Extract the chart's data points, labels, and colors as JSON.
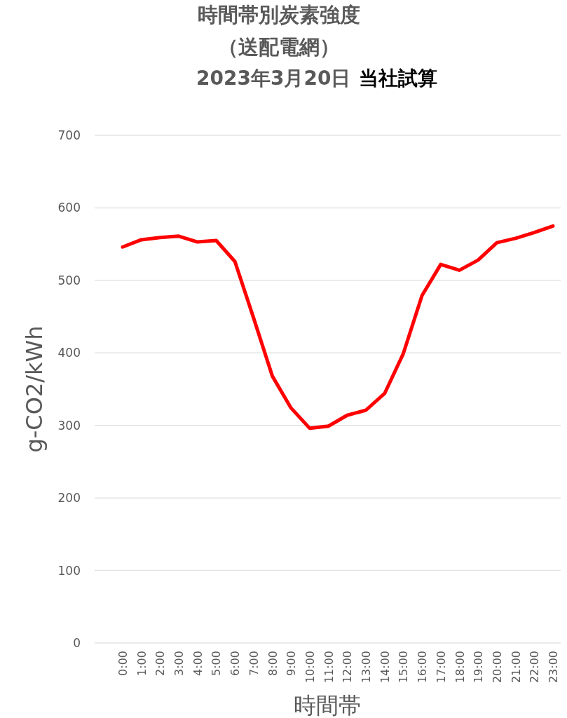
{
  "chart_data": {
    "type": "line",
    "title": "時間帯別炭素強度",
    "subtitle": "（送配電網）",
    "annotations": [
      "2023年3月20日",
      "当社試算"
    ],
    "xlabel": "時間帯",
    "ylabel": "g-CO2/kWh",
    "categories": [
      "0:00",
      "1:00",
      "2:00",
      "3:00",
      "4:00",
      "5:00",
      "6:00",
      "7:00",
      "8:00",
      "9:00",
      "10:00",
      "11:00",
      "12:00",
      "13:00",
      "14:00",
      "15:00",
      "16:00",
      "17:00",
      "18:00",
      "19:00",
      "20:00",
      "21:00",
      "22:00",
      "23:00"
    ],
    "series": [
      {
        "color": "#ff0000",
        "values": [
          546,
          556,
          559,
          561,
          553,
          555,
          526,
          448,
          368,
          324,
          296,
          299,
          314,
          321,
          344,
          399,
          479,
          522,
          514,
          528,
          552,
          558,
          566,
          575
        ]
      }
    ],
    "ylim": [
      0,
      700
    ],
    "yticks": [
      0,
      100,
      200,
      300,
      400,
      500,
      600,
      700
    ],
    "grid": "y"
  }
}
